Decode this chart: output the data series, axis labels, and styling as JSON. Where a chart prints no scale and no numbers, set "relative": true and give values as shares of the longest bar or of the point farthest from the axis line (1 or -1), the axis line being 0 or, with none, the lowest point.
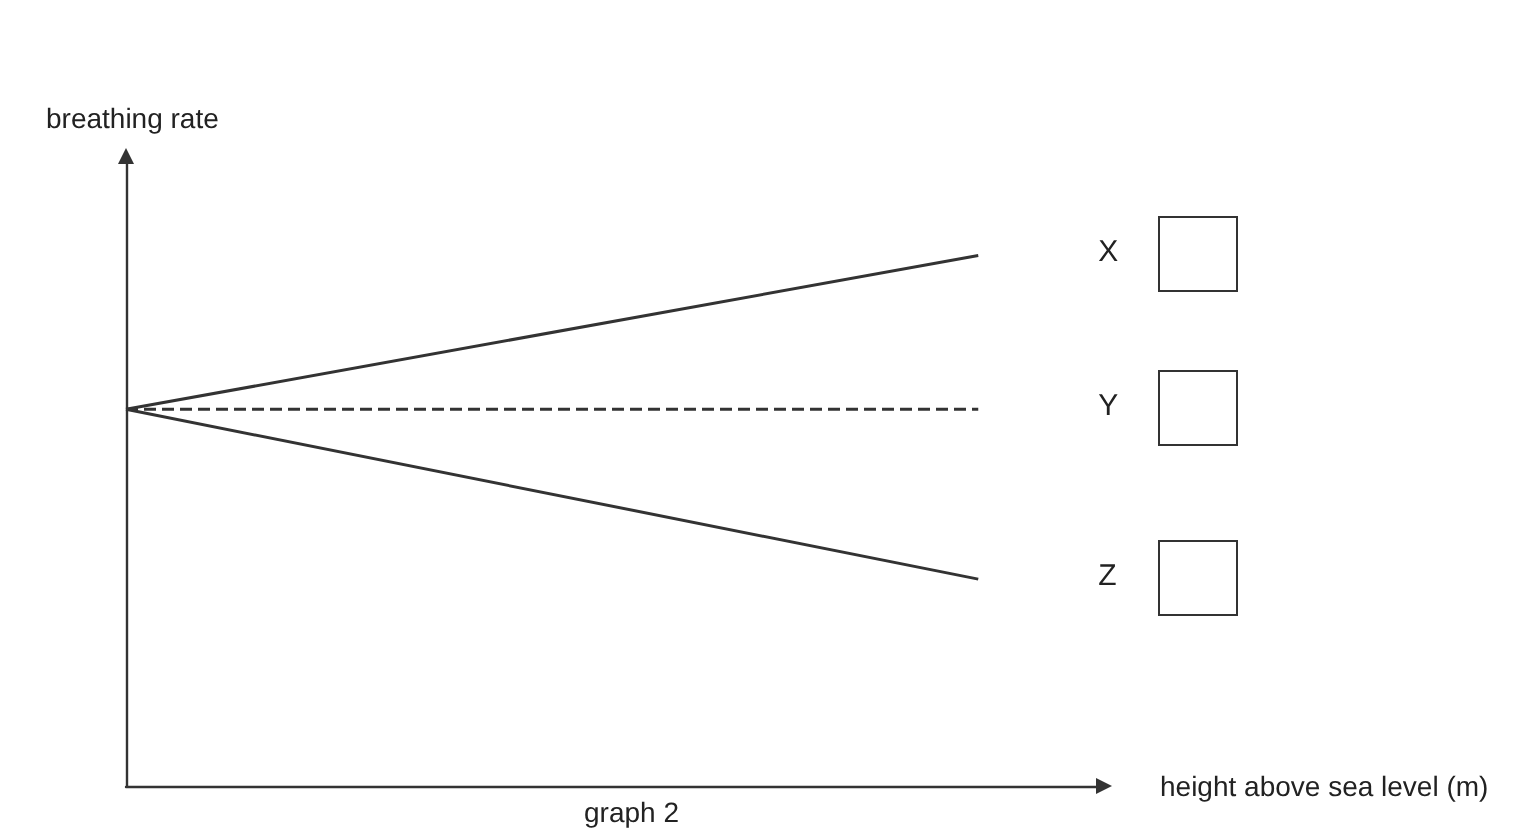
{
  "chart_data": {
    "type": "line",
    "relative": true,
    "ylabel": "breathing rate",
    "xlabel": "height above sea level (m)",
    "annotations": [
      "graph 2"
    ],
    "marker": "none",
    "grid": false,
    "legend": false,
    "categories": [
      null,
      null,
      null,
      null,
      null,
      null,
      null,
      null,
      null
    ],
    "series": [
      {
        "name": "X",
        "color": "#333333",
        "line_style": "solid",
        "values": [
          0.71,
          null,
          null,
          null,
          null,
          null,
          null,
          1,
          null
        ]
      },
      {
        "name": "Y",
        "color": "#333333",
        "line_style": "dashed",
        "values": [
          0.71,
          null,
          null,
          null,
          null,
          null,
          null,
          0.71,
          null
        ]
      },
      {
        "name": "Z",
        "color": "#333333",
        "line_style": "solid",
        "values": [
          0.71,
          null,
          null,
          null,
          null,
          null,
          null,
          0.39,
          null
        ]
      }
    ]
  }
}
